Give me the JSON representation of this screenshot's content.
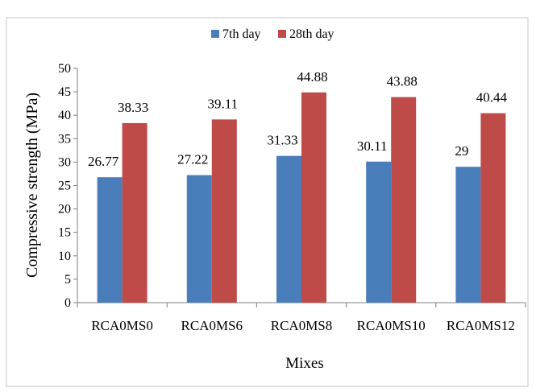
{
  "caption_fragment": "",
  "chart_data": {
    "type": "bar",
    "title": "",
    "xlabel": "Mixes",
    "ylabel": "Compressive strength (MPa)",
    "ylim": [
      0,
      50
    ],
    "yticks": [
      0,
      5,
      10,
      15,
      20,
      25,
      30,
      35,
      40,
      45,
      50
    ],
    "grid": false,
    "legend_position": "top",
    "categories": [
      "RCA0MS0",
      "RCA0MS6",
      "RCA0MS8",
      "RCA0MS10",
      "RCA0MS12"
    ],
    "series": [
      {
        "name": "7th day",
        "color": "#4a7ebb",
        "values": [
          26.77,
          27.22,
          31.33,
          30.11,
          29
        ],
        "labels": [
          "26.77",
          "27.22",
          "31.33",
          "30.11",
          "29"
        ]
      },
      {
        "name": "28th day",
        "color": "#be4b48",
        "values": [
          38.33,
          39.11,
          44.88,
          43.88,
          40.44
        ],
        "labels": [
          "38.33",
          "39.11",
          "44.88",
          "43.88",
          "40.44"
        ]
      }
    ]
  }
}
